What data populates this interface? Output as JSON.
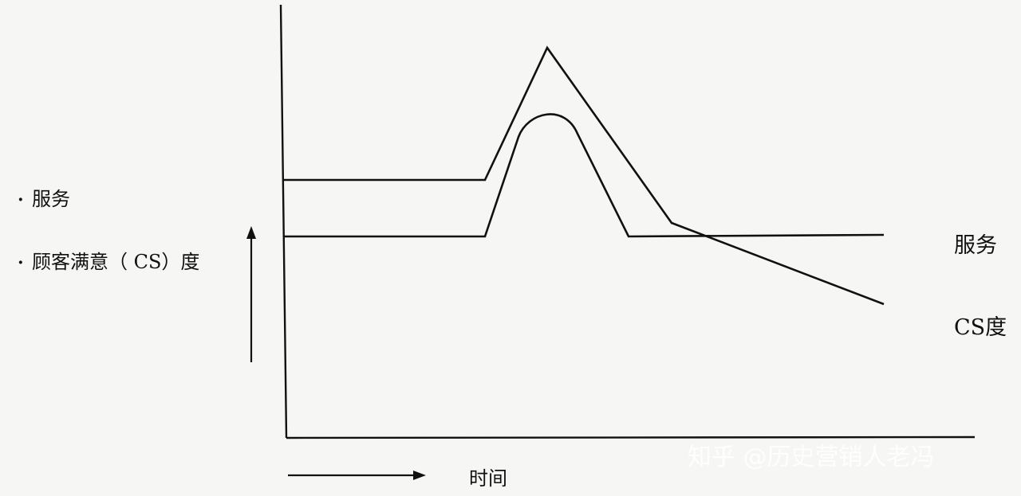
{
  "chart_data": {
    "type": "line",
    "legend": {
      "items": [
        {
          "bullet": "·",
          "label": "服务"
        },
        {
          "bullet": "·",
          "label": "顾客满意（ CS）度"
        }
      ]
    },
    "xlabel": "时间",
    "series": [
      {
        "name": "服务"
      },
      {
        "name": "CS度"
      }
    ],
    "colors": {
      "line": "#111111",
      "background": "#f6f6f4"
    },
    "grid": false
  },
  "watermark": {
    "text": "知乎 @历史营销人老冯"
  }
}
